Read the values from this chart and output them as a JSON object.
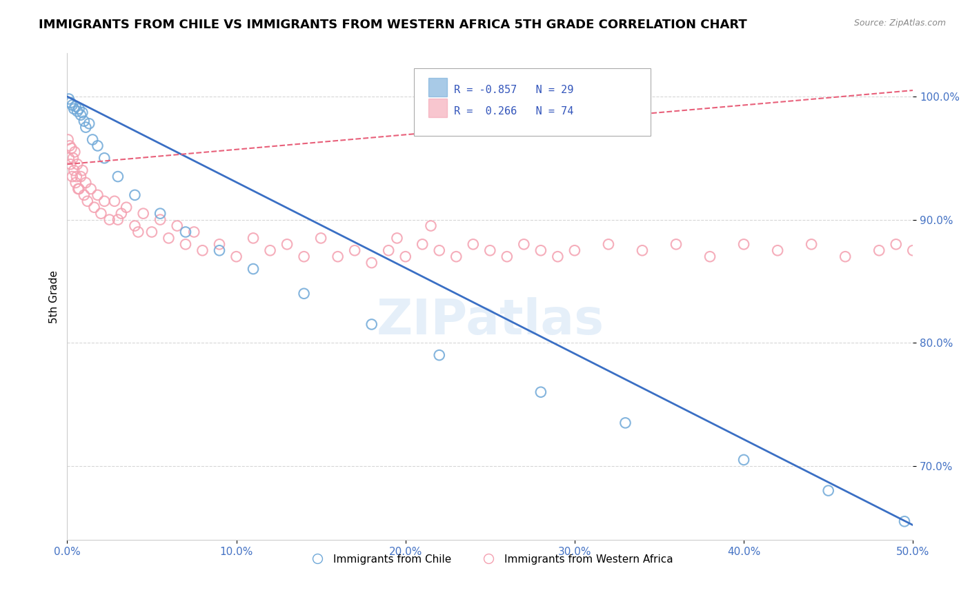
{
  "title": "IMMIGRANTS FROM CHILE VS IMMIGRANTS FROM WESTERN AFRICA 5TH GRADE CORRELATION CHART",
  "source": "Source: ZipAtlas.com",
  "ylabel": "5th Grade",
  "xlim": [
    0.0,
    50.0
  ],
  "ylim": [
    64.0,
    103.5
  ],
  "yticks": [
    70.0,
    80.0,
    90.0,
    100.0
  ],
  "ytick_labels": [
    "70.0%",
    "80.0%",
    "90.0%",
    "100.0%"
  ],
  "xticks": [
    0.0,
    10.0,
    20.0,
    30.0,
    40.0,
    50.0
  ],
  "xtick_labels": [
    "0.0%",
    "10.0%",
    "20.0%",
    "30.0%",
    "40.0%",
    "50.0%"
  ],
  "chile_color": "#6fa8d8",
  "western_africa_color": "#f4a0b0",
  "chile_line_color": "#3a6fc4",
  "wa_line_color": "#e8607a",
  "chile_R": -0.857,
  "chile_N": 29,
  "western_africa_R": 0.266,
  "western_africa_N": 74,
  "watermark": "ZIPatlas",
  "chile_scatter_x": [
    0.1,
    0.2,
    0.3,
    0.4,
    0.5,
    0.6,
    0.7,
    0.8,
    0.9,
    1.0,
    1.1,
    1.3,
    1.5,
    1.8,
    2.2,
    3.0,
    4.0,
    5.5,
    7.0,
    9.0,
    11.0,
    14.0,
    18.0,
    22.0,
    28.0,
    33.0,
    40.0,
    45.0,
    49.5
  ],
  "chile_scatter_y": [
    99.8,
    99.5,
    99.3,
    99.0,
    99.2,
    98.8,
    99.0,
    98.5,
    98.7,
    98.0,
    97.5,
    97.8,
    96.5,
    96.0,
    95.0,
    93.5,
    92.0,
    90.5,
    89.0,
    87.5,
    86.0,
    84.0,
    81.5,
    79.0,
    76.0,
    73.5,
    70.5,
    68.0,
    65.5
  ],
  "wa_scatter_x": [
    0.05,
    0.1,
    0.15,
    0.2,
    0.25,
    0.3,
    0.35,
    0.4,
    0.45,
    0.5,
    0.6,
    0.7,
    0.8,
    0.9,
    1.0,
    1.1,
    1.2,
    1.4,
    1.6,
    1.8,
    2.0,
    2.2,
    2.5,
    2.8,
    3.0,
    3.5,
    4.0,
    4.5,
    5.0,
    5.5,
    6.0,
    6.5,
    7.0,
    7.5,
    8.0,
    9.0,
    10.0,
    11.0,
    12.0,
    13.0,
    14.0,
    15.0,
    16.0,
    17.0,
    18.0,
    19.0,
    20.0,
    21.0,
    22.0,
    23.0,
    24.0,
    25.0,
    26.0,
    27.0,
    28.0,
    29.0,
    30.0,
    32.0,
    34.0,
    36.0,
    38.0,
    40.0,
    42.0,
    44.0,
    46.0,
    48.0,
    49.0,
    50.0,
    3.2,
    4.2,
    0.55,
    0.65,
    19.5,
    21.5
  ],
  "wa_scatter_y": [
    96.5,
    95.0,
    96.0,
    94.5,
    95.8,
    93.5,
    95.0,
    94.0,
    95.5,
    93.0,
    94.5,
    92.5,
    93.5,
    94.0,
    92.0,
    93.0,
    91.5,
    92.5,
    91.0,
    92.0,
    90.5,
    91.5,
    90.0,
    91.5,
    90.0,
    91.0,
    89.5,
    90.5,
    89.0,
    90.0,
    88.5,
    89.5,
    88.0,
    89.0,
    87.5,
    88.0,
    87.0,
    88.5,
    87.5,
    88.0,
    87.0,
    88.5,
    87.0,
    87.5,
    86.5,
    87.5,
    87.0,
    88.0,
    87.5,
    87.0,
    88.0,
    87.5,
    87.0,
    88.0,
    87.5,
    87.0,
    87.5,
    88.0,
    87.5,
    88.0,
    87.0,
    88.0,
    87.5,
    88.0,
    87.0,
    87.5,
    88.0,
    87.5,
    90.5,
    89.0,
    93.5,
    92.5,
    88.5,
    89.5
  ],
  "chile_line_x0": 0.0,
  "chile_line_y0": 100.0,
  "chile_line_x1": 50.0,
  "chile_line_y1": 65.2,
  "wa_line_x0": 0.0,
  "wa_line_y0": 94.5,
  "wa_line_x1": 50.0,
  "wa_line_y1": 100.5
}
